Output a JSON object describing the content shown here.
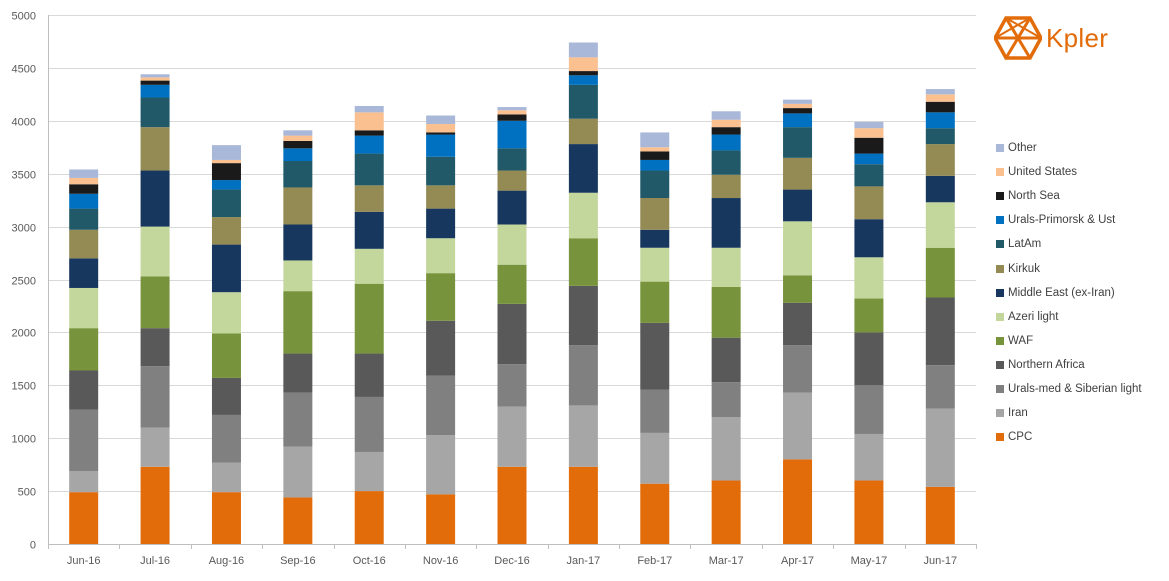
{
  "brand": {
    "name": "Kpler",
    "color": "#e36c0a"
  },
  "chart_data": {
    "type": "bar",
    "stacked": true,
    "title": "",
    "xlabel": "",
    "ylabel": "",
    "ylim": [
      0,
      5000
    ],
    "yticks": [
      0,
      500,
      1000,
      1500,
      2000,
      2500,
      3000,
      3500,
      4000,
      4500,
      5000
    ],
    "grid": "horizontal",
    "legend_position": "right",
    "categories": [
      "Jun-16",
      "Jul-16",
      "Aug-16",
      "Sep-16",
      "Oct-16",
      "Nov-16",
      "Dec-16",
      "Jan-17",
      "Feb-17",
      "Mar-17",
      "Apr-17",
      "May-17",
      "Jun-17"
    ],
    "series": [
      {
        "name": "CPC",
        "color": "#e36c0a",
        "values": [
          490,
          730,
          490,
          440,
          500,
          470,
          730,
          730,
          570,
          600,
          800,
          600,
          540
        ]
      },
      {
        "name": "Iran",
        "color": "#a6a6a6",
        "values": [
          200,
          370,
          280,
          480,
          370,
          560,
          570,
          580,
          480,
          600,
          630,
          440,
          740
        ]
      },
      {
        "name": "Urals-med & Siberian light",
        "color": "#808080",
        "values": [
          580,
          580,
          450,
          510,
          520,
          560,
          400,
          570,
          410,
          330,
          450,
          460,
          410
        ]
      },
      {
        "name": "Northern Africa",
        "color": "#595959",
        "values": [
          370,
          360,
          350,
          370,
          410,
          520,
          570,
          560,
          630,
          420,
          400,
          500,
          640
        ]
      },
      {
        "name": "WAF",
        "color": "#77933c",
        "values": [
          400,
          490,
          420,
          590,
          660,
          450,
          370,
          450,
          390,
          480,
          260,
          320,
          470
        ]
      },
      {
        "name": "Azeri light",
        "color": "#c3d69b",
        "values": [
          380,
          470,
          390,
          290,
          330,
          330,
          380,
          430,
          320,
          370,
          510,
          390,
          430
        ]
      },
      {
        "name": "Middle East (ex-Iran)",
        "color": "#17375e",
        "values": [
          280,
          530,
          450,
          340,
          350,
          280,
          320,
          460,
          170,
          470,
          300,
          360,
          250
        ]
      },
      {
        "name": "Kirkuk",
        "color": "#948a54",
        "values": [
          270,
          410,
          260,
          350,
          250,
          220,
          190,
          240,
          300,
          220,
          300,
          310,
          300
        ]
      },
      {
        "name": "LatAm",
        "color": "#215968",
        "values": [
          200,
          280,
          260,
          250,
          300,
          270,
          210,
          320,
          260,
          230,
          290,
          210,
          150
        ]
      },
      {
        "name": "Urals-Primorsk & Ust",
        "color": "#0070c0",
        "values": [
          140,
          120,
          90,
          120,
          170,
          210,
          260,
          90,
          100,
          150,
          130,
          100,
          150
        ]
      },
      {
        "name": "North Sea",
        "color": "#1a1a1a",
        "values": [
          90,
          40,
          160,
          70,
          50,
          20,
          60,
          40,
          80,
          70,
          50,
          150,
          100
        ]
      },
      {
        "name": "United States",
        "color": "#fac090",
        "values": [
          60,
          30,
          30,
          50,
          170,
          80,
          40,
          130,
          40,
          70,
          40,
          90,
          70
        ]
      },
      {
        "name": "Other",
        "color": "#a9b8d9",
        "values": [
          80,
          30,
          140,
          50,
          60,
          80,
          30,
          140,
          140,
          80,
          40,
          60,
          50
        ]
      }
    ]
  }
}
